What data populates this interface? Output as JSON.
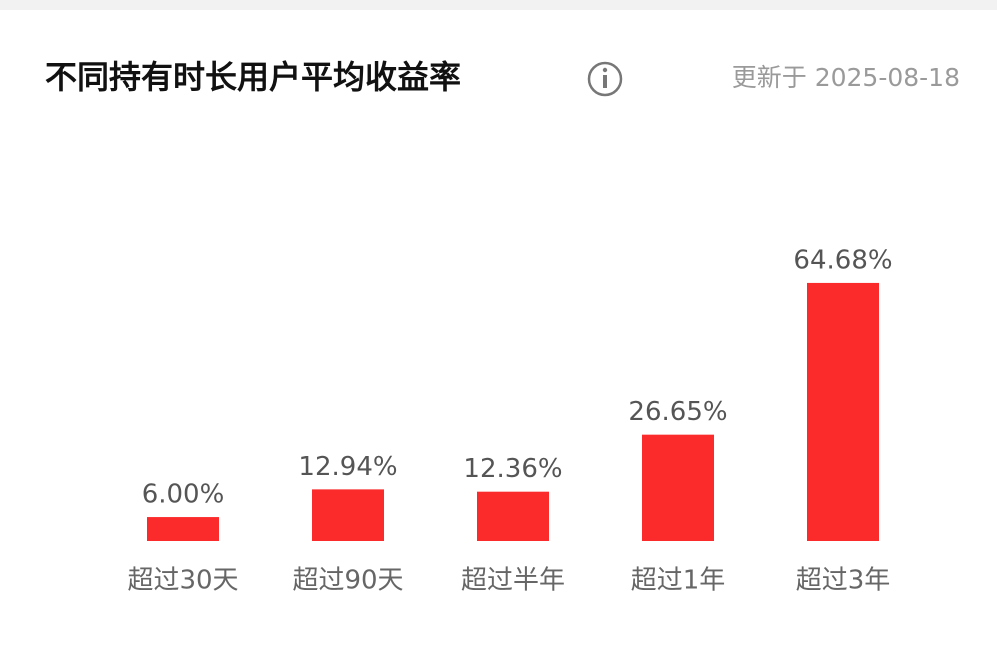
{
  "chart_data": {
    "type": "bar",
    "title": "不同持有时长用户平均收益率",
    "annotation": "更新于 2025-08-18",
    "categories": [
      "超过30天",
      "超过90天",
      "超过半年",
      "超过1年",
      "超过3年"
    ],
    "values": [
      6.0,
      12.94,
      12.36,
      26.65,
      64.68
    ],
    "value_labels": [
      "6.00%",
      "12.94%",
      "12.36%",
      "26.65%",
      "64.68%"
    ],
    "color": "#fb2b2b"
  }
}
